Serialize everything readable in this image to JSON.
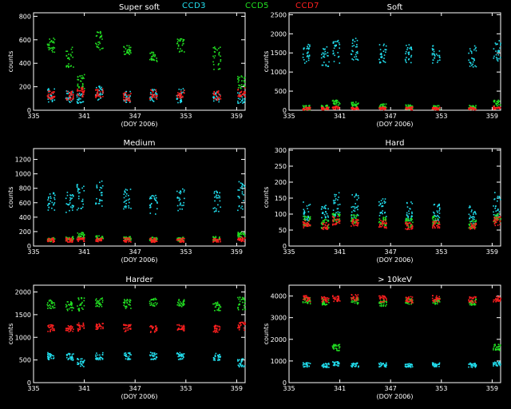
{
  "legend": [
    {
      "name": "CCD3",
      "color": "#22e0f0"
    },
    {
      "name": "CCD5",
      "color": "#22e022"
    },
    {
      "name": "CCD7",
      "color": "#ff2020"
    }
  ],
  "chart_data": [
    {
      "type": "scatter",
      "title": "Super soft",
      "xlabel": "(DOY 2006)",
      "ylabel": "counts",
      "xlim": [
        335,
        360
      ],
      "ylim": [
        0,
        830
      ],
      "xticks": [
        335,
        341,
        347,
        353,
        359
      ],
      "yticks": [
        0,
        200,
        400,
        600,
        800
      ],
      "grid": false,
      "series": [
        {
          "name": "CCD3",
          "bands": [
            [
              130,
              60
            ],
            [
              120,
              50
            ],
            [
              110,
              45
            ],
            [
              150,
              60
            ],
            [
              120,
              50
            ],
            [
              130,
              55
            ]
          ]
        },
        {
          "name": "CCD5",
          "bands": [
            [
              560,
              60
            ],
            [
              450,
              100
            ],
            [
              250,
              60
            ],
            [
              600,
              80
            ],
            [
              520,
              40
            ],
            [
              460,
              40
            ]
          ]
        },
        {
          "name": "CCD7",
          "bands": [
            [
              140,
              40
            ],
            [
              130,
              40
            ],
            [
              160,
              40
            ],
            [
              150,
              40
            ],
            [
              120,
              40
            ],
            [
              140,
              40
            ]
          ]
        }
      ]
    },
    {
      "type": "scatter",
      "title": "Soft",
      "xlabel": "(DOY 2006)",
      "ylabel": "counts",
      "xlim": [
        335,
        360
      ],
      "ylim": [
        0,
        2550
      ],
      "xticks": [
        335,
        341,
        347,
        353,
        359
      ],
      "yticks": [
        0,
        500,
        1000,
        1500,
        2000,
        2500
      ],
      "grid": false,
      "series": [
        {
          "name": "CCD3",
          "bands": [
            [
              1500,
              250
            ],
            [
              1450,
              300
            ],
            [
              1550,
              300
            ],
            [
              1600,
              300
            ],
            [
              1500,
              250
            ],
            [
              1500,
              250
            ]
          ]
        },
        {
          "name": "CCD5",
          "bands": [
            [
              80,
              60
            ],
            [
              90,
              60
            ],
            [
              200,
              80
            ],
            [
              150,
              80
            ],
            [
              120,
              60
            ],
            [
              100,
              60
            ]
          ]
        },
        {
          "name": "CCD7",
          "bands": [
            [
              60,
              40
            ],
            [
              60,
              40
            ],
            [
              80,
              40
            ],
            [
              70,
              40
            ],
            [
              60,
              40
            ],
            [
              60,
              40
            ]
          ]
        }
      ]
    },
    {
      "type": "scatter",
      "title": "Medium",
      "xlabel": "(DOY 2006)",
      "ylabel": "counts",
      "xlim": [
        335,
        360
      ],
      "ylim": [
        0,
        1350
      ],
      "xticks": [
        335,
        341,
        347,
        353,
        359
      ],
      "yticks": [
        0,
        200,
        400,
        600,
        800,
        1000,
        1200
      ],
      "grid": false,
      "series": [
        {
          "name": "CCD3",
          "bands": [
            [
              650,
              150
            ],
            [
              620,
              150
            ],
            [
              700,
              200
            ],
            [
              720,
              200
            ],
            [
              650,
              150
            ],
            [
              600,
              150
            ]
          ]
        },
        {
          "name": "CCD5",
          "bands": [
            [
              100,
              30
            ],
            [
              110,
              30
            ],
            [
              160,
              40
            ],
            [
              120,
              30
            ],
            [
              110,
              30
            ],
            [
              100,
              30
            ]
          ]
        },
        {
          "name": "CCD7",
          "bands": [
            [
              90,
              30
            ],
            [
              90,
              30
            ],
            [
              100,
              30
            ],
            [
              100,
              30
            ],
            [
              90,
              30
            ],
            [
              90,
              30
            ]
          ]
        }
      ]
    },
    {
      "type": "scatter",
      "title": "Hard",
      "xlabel": "(DOY 2006)",
      "ylabel": "counts",
      "xlim": [
        335,
        360
      ],
      "ylim": [
        0,
        305
      ],
      "xticks": [
        335,
        341,
        347,
        353,
        359
      ],
      "yticks": [
        0,
        50,
        100,
        150,
        200,
        250,
        300
      ],
      "grid": false,
      "series": [
        {
          "name": "CCD3",
          "bands": [
            [
              110,
              30
            ],
            [
              100,
              30
            ],
            [
              130,
              40
            ],
            [
              130,
              40
            ],
            [
              120,
              30
            ],
            [
              110,
              30
            ]
          ]
        },
        {
          "name": "CCD5",
          "bands": [
            [
              80,
              15
            ],
            [
              70,
              15
            ],
            [
              90,
              15
            ],
            [
              85,
              15
            ],
            [
              80,
              15
            ],
            [
              75,
              15
            ]
          ]
        },
        {
          "name": "CCD7",
          "bands": [
            [
              70,
              12
            ],
            [
              65,
              12
            ],
            [
              80,
              15
            ],
            [
              75,
              12
            ],
            [
              70,
              12
            ],
            [
              65,
              12
            ]
          ]
        }
      ]
    },
    {
      "type": "scatter",
      "title": "Harder",
      "xlabel": "(DOY 2006)",
      "ylabel": "counts",
      "xlim": [
        335,
        360
      ],
      "ylim": [
        0,
        2150
      ],
      "xticks": [
        335,
        341,
        347,
        353,
        359
      ],
      "yticks": [
        0,
        500,
        1000,
        1500,
        2000
      ],
      "grid": false,
      "series": [
        {
          "name": "CCD3",
          "bands": [
            [
              600,
              80
            ],
            [
              580,
              80
            ],
            [
              450,
              100
            ],
            [
              600,
              80
            ],
            [
              600,
              80
            ],
            [
              600,
              80
            ]
          ]
        },
        {
          "name": "CCD5",
          "bands": [
            [
              1750,
              100
            ],
            [
              1700,
              100
            ],
            [
              1750,
              150
            ],
            [
              1780,
              100
            ],
            [
              1750,
              100
            ],
            [
              1780,
              100
            ]
          ]
        },
        {
          "name": "CCD7",
          "bands": [
            [
              1220,
              80
            ],
            [
              1200,
              80
            ],
            [
              1250,
              100
            ],
            [
              1250,
              80
            ],
            [
              1220,
              80
            ],
            [
              1200,
              80
            ]
          ]
        }
      ]
    },
    {
      "type": "scatter",
      "title": "> 10keV",
      "xlabel": "(DOY 2006)",
      "ylabel": "counts",
      "xlim": [
        335,
        360
      ],
      "ylim": [
        0,
        4500
      ],
      "xticks": [
        335,
        341,
        347,
        353,
        359
      ],
      "yticks": [
        0,
        1000,
        2000,
        3000,
        4000
      ],
      "grid": false,
      "series": [
        {
          "name": "CCD3",
          "bands": [
            [
              850,
              100
            ],
            [
              830,
              100
            ],
            [
              900,
              100
            ],
            [
              850,
              100
            ],
            [
              850,
              100
            ],
            [
              830,
              100
            ]
          ]
        },
        {
          "name": "CCD5",
          "bands": [
            [
              3800,
              150
            ],
            [
              3750,
              150
            ],
            [
              1650,
              150
            ],
            [
              3800,
              150
            ],
            [
              3700,
              150
            ],
            [
              3800,
              150
            ]
          ]
        },
        {
          "name": "CCD7",
          "bands": [
            [
              3900,
              150
            ],
            [
              3850,
              150
            ],
            [
              3900,
              150
            ],
            [
              3950,
              150
            ],
            [
              3900,
              150
            ],
            [
              3850,
              150
            ]
          ]
        }
      ]
    }
  ]
}
